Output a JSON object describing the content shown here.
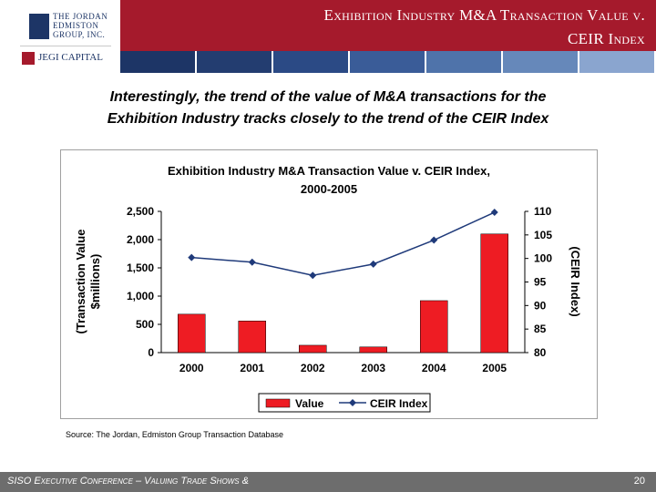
{
  "colors": {
    "header": "#a51a2c",
    "bar": "#ee1c23",
    "line": "#1f3a7a",
    "bands": [
      "#1d3566",
      "#233d70",
      "#2b4a85",
      "#3a5c98",
      "#4f73aa",
      "#6688ba",
      "#8aa5cf"
    ]
  },
  "logo": {
    "lines": [
      "THE JORDAN",
      "EDMISTON",
      "GROUP, INC."
    ],
    "capital": "JEGI CAPITAL"
  },
  "header": {
    "title_line1": "Exhibition Industry M&A Transaction Value v.",
    "title_line2": "CEIR Index"
  },
  "intro": {
    "line1": "Interestingly, the trend of the value of M&A transactions for the",
    "line2": "Exhibition Industry tracks closely to the trend of the CEIR Index"
  },
  "chart_data": {
    "type": "bar",
    "title_line1": "Exhibition Industry M&A Transaction Value v. CEIR Index,",
    "title_line2": "2000-2005",
    "categories": [
      "2000",
      "2001",
      "2002",
      "2003",
      "2004",
      "2005"
    ],
    "series": [
      {
        "name": "Value",
        "type": "bar",
        "axis": "left",
        "values": [
          680,
          560,
          130,
          100,
          920,
          2100
        ]
      },
      {
        "name": "CEIR Index",
        "type": "line",
        "axis": "right",
        "values": [
          100.2,
          99.2,
          96.4,
          98.8,
          103.9,
          109.8
        ]
      }
    ],
    "ylabel_left_line1": "(Transaction Value",
    "ylabel_left_line2": "$millions)",
    "ylabel_right": "(CEIR Index)",
    "ylim_left": [
      0,
      2500
    ],
    "ylim_right": [
      80,
      110
    ],
    "yticks_left": [
      "2,500",
      "2,000",
      "1,500",
      "1,000",
      "500",
      "0"
    ],
    "yticks_right": [
      "110",
      "105",
      "100",
      "95",
      "90",
      "85",
      "80"
    ],
    "legend": [
      "Value",
      "CEIR Index"
    ],
    "legend_position": "bottom",
    "grid": false
  },
  "source": "Source: The Jordan, Edmiston Group Transaction Database",
  "footer": {
    "text": "SISO Executive Conference – Valuing Trade Shows &",
    "page": "20"
  }
}
